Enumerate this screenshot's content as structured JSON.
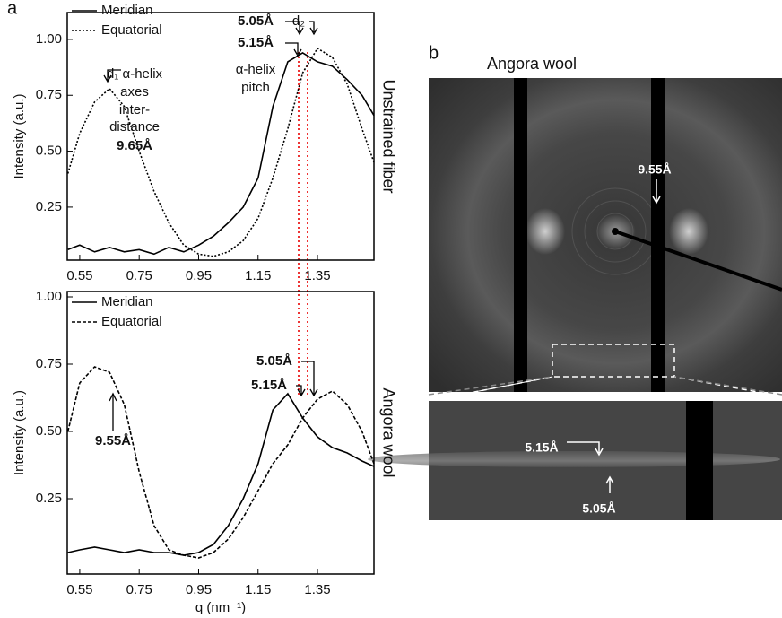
{
  "panel_labels": [
    "a",
    "b"
  ],
  "chart_data": [
    {
      "type": "line",
      "ylabel": "Intensity (a.u.)",
      "side_label": "Unstrained fiber",
      "x": [
        0.51,
        0.55,
        0.6,
        0.65,
        0.7,
        0.75,
        0.8,
        0.85,
        0.9,
        0.95,
        1.0,
        1.05,
        1.1,
        1.15,
        1.2,
        1.25,
        1.3,
        1.35,
        1.4,
        1.45,
        1.5,
        1.54
      ],
      "xlim": [
        0.508,
        1.54
      ],
      "xticks": [
        0.55,
        0.75,
        0.95,
        1.15,
        1.35
      ],
      "ylim": [
        0.013,
        1.12
      ],
      "yticks": [
        0.25,
        {
          "value": 0.5,
          "label": "0.50"
        },
        0.75,
        {
          "value": 1.0,
          "label": "1.00"
        }
      ],
      "series": [
        {
          "name": "Meridian",
          "color": "#000000",
          "style": "solid",
          "values": [
            0.06,
            0.08,
            0.05,
            0.07,
            0.05,
            0.06,
            0.04,
            0.07,
            0.05,
            0.08,
            0.12,
            0.18,
            0.25,
            0.38,
            0.7,
            0.9,
            0.94,
            0.9,
            0.88,
            0.82,
            0.75,
            0.66
          ]
        },
        {
          "name": "Equatorial",
          "color": "#000000",
          "style": "dotted",
          "values": [
            0.4,
            0.58,
            0.72,
            0.78,
            0.7,
            0.5,
            0.32,
            0.18,
            0.08,
            0.04,
            0.03,
            0.05,
            0.1,
            0.2,
            0.38,
            0.6,
            0.85,
            0.96,
            0.92,
            0.8,
            0.6,
            0.45
          ]
        }
      ],
      "annotations": [
        "d₁ α-helix",
        "axes",
        "inter-",
        "distance",
        "9.65Å",
        "5.05Å",
        "d₂",
        "5.15Å",
        "α-helix",
        "pitch"
      ]
    },
    {
      "type": "line",
      "ylabel": "Intensity (a.u.)",
      "side_label": "Angora wool",
      "xlabel": "q (nm⁻¹)",
      "x": [
        0.51,
        0.55,
        0.6,
        0.65,
        0.7,
        0.75,
        0.8,
        0.85,
        0.9,
        0.95,
        1.0,
        1.05,
        1.1,
        1.15,
        1.2,
        1.25,
        1.3,
        1.35,
        1.4,
        1.45,
        1.5,
        1.54
      ],
      "xlim": [
        0.508,
        1.54
      ],
      "xticks": [
        0.55,
        0.75,
        0.95,
        1.15,
        1.35
      ],
      "ylim": [
        -0.03,
        1.02
      ],
      "yticks": [
        0.25,
        {
          "value": 0.5,
          "label": "0.50"
        },
        0.75,
        {
          "value": 1.0,
          "label": "1.00"
        }
      ],
      "series": [
        {
          "name": "Meridian",
          "color": "#000000",
          "style": "solid",
          "values": [
            0.05,
            0.06,
            0.07,
            0.06,
            0.05,
            0.06,
            0.05,
            0.05,
            0.04,
            0.05,
            0.08,
            0.15,
            0.25,
            0.38,
            0.58,
            0.64,
            0.55,
            0.48,
            0.44,
            0.42,
            0.39,
            0.37
          ]
        },
        {
          "name": "Equatorial",
          "color": "#000000",
          "style": "dashed",
          "values": [
            0.5,
            0.68,
            0.74,
            0.72,
            0.6,
            0.35,
            0.15,
            0.06,
            0.04,
            0.03,
            0.05,
            0.1,
            0.18,
            0.28,
            0.38,
            0.45,
            0.55,
            0.62,
            0.65,
            0.6,
            0.5,
            0.38
          ]
        }
      ],
      "annotations": [
        "5.05Å",
        "5.15Å",
        "9.55Å"
      ]
    }
  ],
  "panel_b": {
    "title": "Angora wool",
    "labels": [
      "9.55Å",
      "5.15Å",
      "5.05Å"
    ]
  }
}
